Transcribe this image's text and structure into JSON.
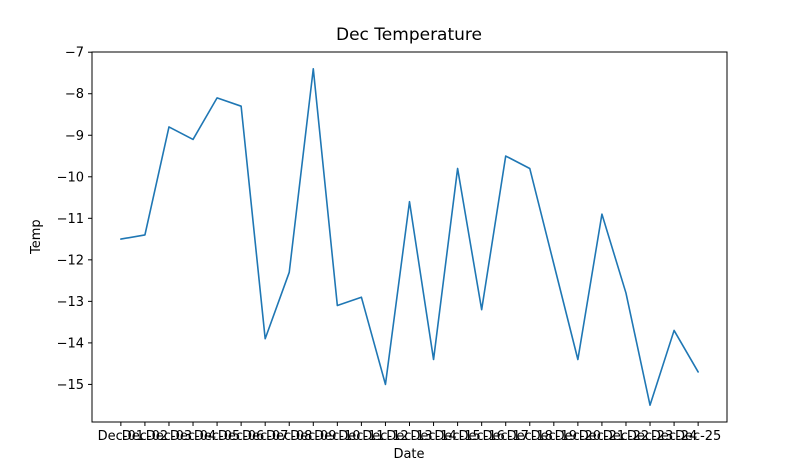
{
  "chart_data": {
    "type": "line",
    "title": "Dec Temperature",
    "xlabel": "Date",
    "ylabel": "Temp",
    "categories": [
      "Dec-01",
      "Dec-02",
      "Dec-03",
      "Dec-04",
      "Dec-05",
      "Dec-06",
      "Dec-07",
      "Dec-08",
      "Dec-09",
      "Dec-10",
      "Dec-11",
      "Dec-12",
      "Dec-13",
      "Dec-14",
      "Dec-15",
      "Dec-16",
      "Dec-17",
      "Dec-18",
      "Dec-19",
      "Dec-20",
      "Dec-21",
      "Dec-22",
      "Dec-23",
      "Dec-24",
      "Dec-25"
    ],
    "values": [
      -11.5,
      -11.4,
      -8.8,
      -9.1,
      -8.1,
      -8.3,
      -13.9,
      -12.3,
      -7.4,
      -13.1,
      -12.9,
      -15.0,
      -10.6,
      -14.4,
      -9.8,
      -13.2,
      -9.5,
      -9.8,
      -12.1,
      -14.4,
      -10.9,
      -12.8,
      -15.5,
      -13.7,
      -14.7
    ],
    "yticks": [
      -7,
      -8,
      -9,
      -10,
      -11,
      -12,
      -13,
      -14,
      -15
    ],
    "ytick_labels": [
      "−7",
      "−8",
      "−9",
      "−10",
      "−11",
      "−12",
      "−13",
      "−14",
      "−15"
    ],
    "ylim": [
      -15.905,
      -6.995
    ],
    "xlim": [
      -1.2,
      25.2
    ],
    "grid": false,
    "legend": "none",
    "line_color": "#1f77b4",
    "axis_color": "#000000",
    "background": "#ffffff"
  }
}
